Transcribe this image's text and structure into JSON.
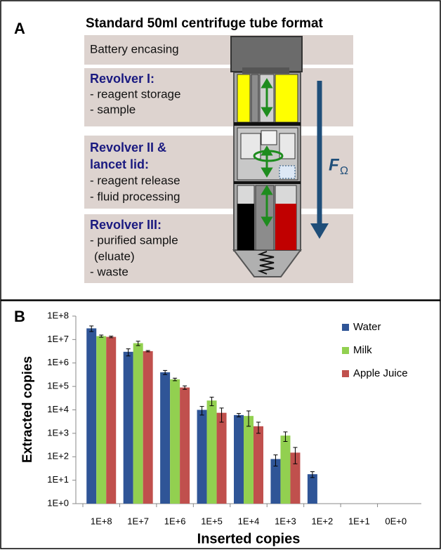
{
  "panel_a": {
    "label": "A",
    "title": "Standard 50ml centrifuge tube format",
    "battery": "Battery encasing",
    "sections": [
      {
        "heading": [
          "Revolver I:"
        ],
        "items": [
          "- reagent storage",
          "- sample"
        ]
      },
      {
        "heading": [
          "Revolver  II &",
          "lancet lid:"
        ],
        "items": [
          "- reagent release",
          "- fluid processing"
        ]
      },
      {
        "heading": [
          "Revolver III:"
        ],
        "items": [
          "- purified sample",
          "(eluate)",
          "- waste"
        ]
      }
    ],
    "force": {
      "symbol": "F",
      "subscript": "Ω"
    }
  },
  "chart_data": {
    "type": "bar",
    "panel_label": "B",
    "xlabel": "Inserted copies",
    "ylabel": "Extracted copies",
    "log_scale": true,
    "legend": "right",
    "categories": [
      "1E+8",
      "1E+7",
      "1E+6",
      "1E+5",
      "1E+4",
      "1E+3",
      "1E+2",
      "1E+1",
      "0E+0"
    ],
    "series": [
      {
        "name": "Water",
        "color": "#2f5597",
        "values": [
          30000000,
          3000000,
          400000,
          10000,
          6000,
          80,
          18,
          null,
          null
        ],
        "errors": [
          8000000,
          1000000,
          80000,
          4000,
          1000,
          40,
          5,
          null,
          null
        ]
      },
      {
        "name": "Milk",
        "color": "#92d050",
        "values": [
          14000000,
          7000000,
          200000,
          25000,
          5500,
          800,
          null,
          null,
          null
        ],
        "errors": [
          1500000,
          1500000,
          25000,
          10000,
          3500,
          350,
          null,
          null,
          null
        ]
      },
      {
        "name": "Apple Juice",
        "color": "#c0504d",
        "values": [
          13000000,
          3200000,
          90000,
          7500,
          2000,
          150,
          null,
          null,
          null
        ],
        "errors": [
          1000000,
          200000,
          15000,
          4500,
          1000,
          100,
          null,
          null,
          null
        ]
      }
    ],
    "ylim": [
      1,
      100000000
    ],
    "yticks": [
      {
        "value": 1,
        "label": "1E+0"
      },
      {
        "value": 10,
        "label": "1E+1"
      },
      {
        "value": 100,
        "label": "1E+2"
      },
      {
        "value": 1000,
        "label": "1E+3"
      },
      {
        "value": 10000,
        "label": "1E+4"
      },
      {
        "value": 100000,
        "label": "1E+5"
      },
      {
        "value": 1000000,
        "label": "1E+6"
      },
      {
        "value": 10000000,
        "label": "1E+7"
      },
      {
        "value": 100000000,
        "label": "1E+8"
      }
    ]
  }
}
